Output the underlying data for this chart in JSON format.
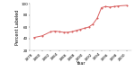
{
  "years": [
    1978,
    1980,
    1982,
    1983,
    1984,
    1985,
    1986,
    1987,
    1988,
    1989,
    1990,
    1991,
    1992,
    1993,
    1994,
    1995,
    1996,
    1997,
    1998,
    2000
  ],
  "values": [
    42,
    45,
    52,
    53,
    52,
    51,
    51,
    52,
    54,
    56,
    58,
    60,
    65,
    75,
    93,
    95,
    94,
    95,
    96,
    97
  ],
  "line_color": "#d96060",
  "marker_color": "#d96060",
  "ylabel": "Percent Labeled",
  "xlabel": "Year",
  "ylim": [
    20,
    100
  ],
  "xlim": [
    1977,
    2001
  ],
  "yticks": [
    20,
    40,
    60,
    80,
    100
  ],
  "xticks": [
    1978,
    1980,
    1982,
    1984,
    1986,
    1988,
    1990,
    1992,
    1994,
    1996,
    1998,
    2000
  ],
  "xtick_labels": [
    "1978",
    "1980",
    "1982",
    "1984",
    "1986",
    "1988",
    "1990",
    "1992",
    "1994",
    "1996",
    "1998",
    "2000"
  ],
  "tick_fontsize": 3.0,
  "label_fontsize": 3.5,
  "linewidth": 0.7,
  "markersize": 1.2,
  "background_color": "#ffffff"
}
